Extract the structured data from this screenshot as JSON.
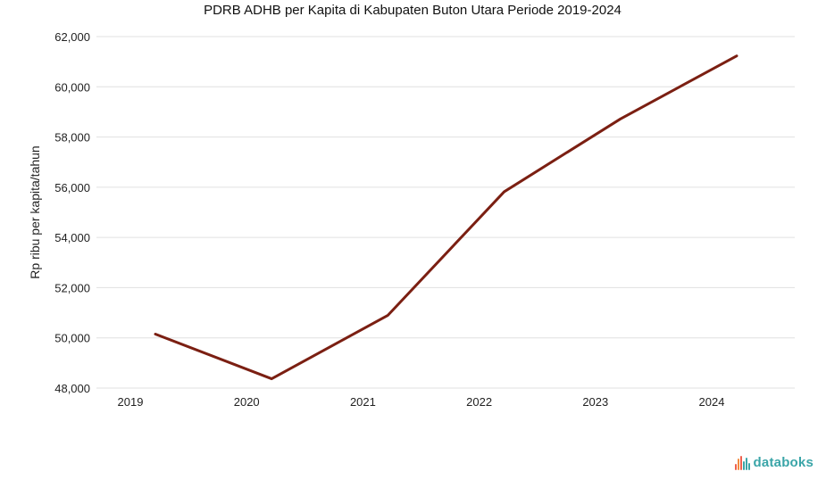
{
  "chart_data": {
    "type": "line",
    "title": "PDRB ADHB per Kapita di Kabupaten Buton Utara Periode 2019-2024",
    "xlabel": "",
    "ylabel": "Rp ribu per kapita/tahun",
    "categories": [
      "2019",
      "2020",
      "2021",
      "2022",
      "2023",
      "2024"
    ],
    "series": [
      {
        "values": [
          50150,
          48370,
          50900,
          55820,
          58720,
          61230
        ],
        "color": "#7b1f12"
      }
    ],
    "ylim": [
      48000,
      62000
    ],
    "yticks": [
      48000,
      50000,
      52000,
      54000,
      56000,
      58000,
      60000,
      62000
    ],
    "ytick_labels": [
      "48,000",
      "50,000",
      "52,000",
      "54,000",
      "56,000",
      "58,000",
      "60,000",
      "62,000"
    ],
    "grid": true,
    "legend": "none"
  },
  "branding": {
    "logo_text": "databoks",
    "logo_color": "#3aa5a8",
    "logo_bar_colors": [
      "#f0604d",
      "#f38a3f",
      "#f0604d",
      "#3aa5a8",
      "#3aa5a8",
      "#3aa5a8"
    ],
    "logo_bar_levels": [
      0.45,
      0.8,
      1.0,
      0.6,
      0.85,
      0.5
    ]
  }
}
